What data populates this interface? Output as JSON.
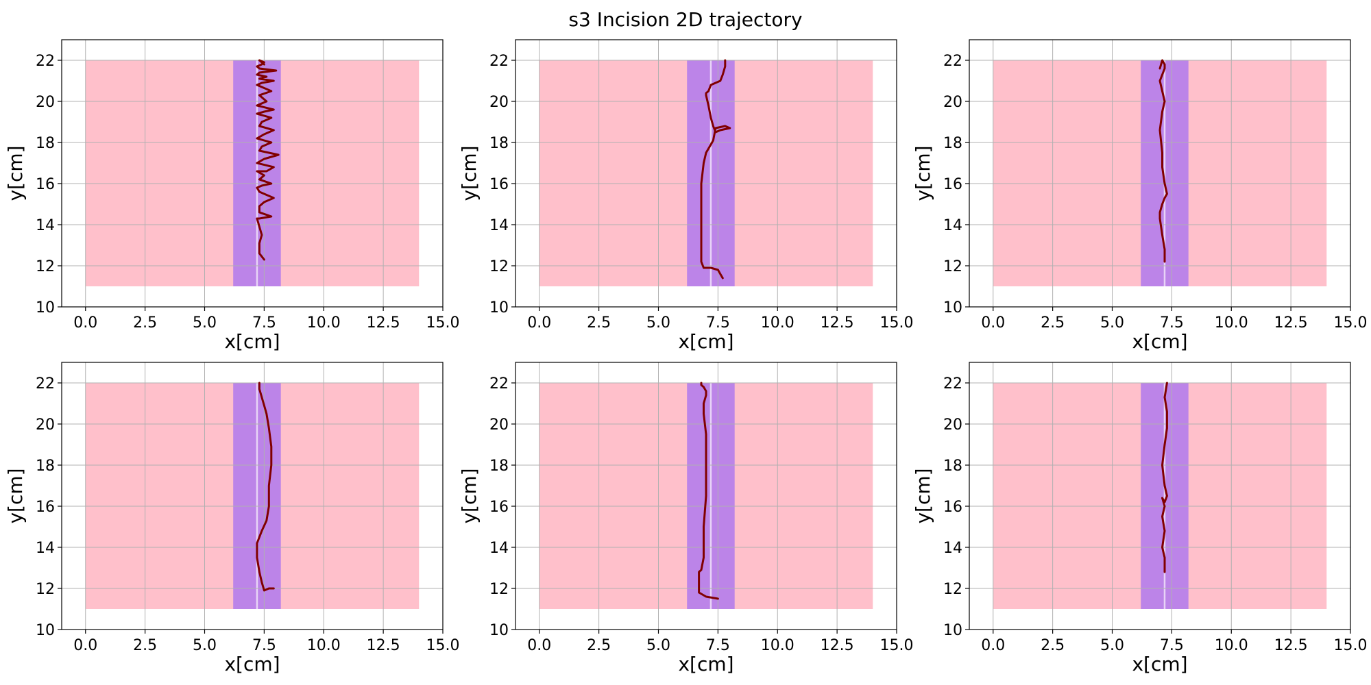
{
  "title": "s3 Incision 2D trajectory",
  "colors": {
    "background_region": "#ffc0cb",
    "band": "#bc84e8",
    "center_line": "#e8d4f7",
    "trajectory": "#800000",
    "grid": "#b0b0b0",
    "axis": "#000000"
  },
  "chart_data": [
    {
      "type": "line",
      "xlabel": "x[cm]",
      "ylabel": "y[cm]",
      "xlim": [
        -1,
        15
      ],
      "ylim": [
        10,
        23
      ],
      "xticks": [
        "0.0",
        "2.5",
        "5.0",
        "7.5",
        "10.0",
        "12.5",
        "15.0"
      ],
      "yticks": [
        "10",
        "12",
        "14",
        "16",
        "18",
        "20",
        "22"
      ],
      "grid": true,
      "regions": {
        "background": [
          0,
          14,
          11,
          22
        ],
        "band": [
          6.2,
          8.2
        ],
        "center_x": 7.2
      },
      "trajectory": {
        "x": [
          7.5,
          7.3,
          7.3,
          7.3,
          7.4,
          7.3,
          7.2,
          7.3,
          7.8,
          7.3,
          7.3,
          7.5,
          7.9,
          7.3,
          7.2,
          7.4,
          7.8,
          7.3,
          7.5,
          7.2,
          7.6,
          7.9,
          7.2,
          7.5,
          8.1,
          7.3,
          7.4,
          7.8,
          7.2,
          7.5,
          7.9,
          7.3,
          7.4,
          7.8,
          7.2,
          7.5,
          7.9,
          7.2,
          7.6,
          7.3,
          7.8,
          7.2,
          7.4,
          7.9,
          7.3,
          7.6,
          7.2,
          7.3,
          8.0,
          7.3,
          7.2,
          7.4,
          7.5,
          7.3,
          7.4,
          7.5
        ],
        "y": [
          12.3,
          12.6,
          12.8,
          13.1,
          13.5,
          13.9,
          14.3,
          14.3,
          14.4,
          14.6,
          14.9,
          15.1,
          15.3,
          15.6,
          15.8,
          15.9,
          16.0,
          16.2,
          16.4,
          16.6,
          16.6,
          16.8,
          17.0,
          17.2,
          17.4,
          17.6,
          17.8,
          18.0,
          18.2,
          18.4,
          18.6,
          18.8,
          19.0,
          19.2,
          19.4,
          19.5,
          19.6,
          19.8,
          20.0,
          20.3,
          20.5,
          20.8,
          20.9,
          21.0,
          21.1,
          21.2,
          21.3,
          21.4,
          21.5,
          21.6,
          21.7,
          21.8,
          21.9,
          22.0,
          21.9,
          21.8
        ]
      }
    },
    {
      "type": "line",
      "xlabel": "x[cm]",
      "ylabel": "y[cm]",
      "xlim": [
        -1,
        15
      ],
      "ylim": [
        10,
        23
      ],
      "xticks": [
        "0.0",
        "2.5",
        "5.0",
        "7.5",
        "10.0",
        "12.5",
        "15.0"
      ],
      "yticks": [
        "10",
        "12",
        "14",
        "16",
        "18",
        "20",
        "22"
      ],
      "grid": true,
      "regions": {
        "background": [
          0,
          14,
          11,
          22
        ],
        "band": [
          6.2,
          8.2
        ],
        "center_x": 7.2
      },
      "trajectory": {
        "x": [
          7.7,
          7.6,
          7.5,
          7.2,
          6.9,
          6.8,
          6.8,
          6.8,
          6.9,
          7.0,
          7.1,
          7.2,
          7.3,
          7.4,
          7.8,
          8.0,
          7.6,
          7.4,
          7.3,
          7.2,
          7.1,
          7.0,
          7.0,
          7.1,
          7.2,
          7.6,
          7.7,
          7.8,
          7.8
        ],
        "y": [
          11.4,
          11.6,
          11.8,
          11.9,
          11.9,
          12.2,
          14.0,
          16.0,
          17.0,
          17.5,
          17.7,
          17.9,
          18.1,
          18.7,
          18.8,
          18.7,
          18.6,
          18.5,
          18.8,
          19.2,
          19.8,
          20.3,
          20.4,
          20.5,
          20.8,
          21.0,
          21.3,
          21.7,
          22.0
        ]
      }
    },
    {
      "type": "line",
      "xlabel": "x[cm]",
      "ylabel": "y[cm]",
      "xlim": [
        -1,
        15
      ],
      "ylim": [
        10,
        23
      ],
      "xticks": [
        "0.0",
        "2.5",
        "5.0",
        "7.5",
        "10.0",
        "12.5",
        "15.0"
      ],
      "yticks": [
        "10",
        "12",
        "14",
        "16",
        "18",
        "20",
        "22"
      ],
      "grid": true,
      "regions": {
        "background": [
          0,
          14,
          11,
          22
        ],
        "band": [
          6.2,
          8.2
        ],
        "center_x": 7.2
      },
      "trajectory": {
        "x": [
          7.2,
          7.2,
          7.1,
          7.0,
          7.0,
          7.1,
          7.2,
          7.3,
          7.2,
          7.1,
          7.1,
          7.0,
          7.1,
          7.2,
          7.1,
          7.0,
          7.1,
          7.2,
          7.2,
          7.1,
          7.0
        ],
        "y": [
          12.2,
          12.8,
          13.5,
          14.3,
          14.6,
          15.0,
          15.3,
          15.5,
          16.0,
          16.8,
          17.5,
          18.6,
          19.5,
          20.0,
          20.5,
          21.0,
          21.3,
          21.6,
          21.8,
          22.0,
          21.6
        ]
      }
    },
    {
      "type": "line",
      "xlabel": "x[cm]",
      "ylabel": "y[cm]",
      "xlim": [
        -1,
        15
      ],
      "ylim": [
        10,
        23
      ],
      "xticks": [
        "0.0",
        "2.5",
        "5.0",
        "7.5",
        "10.0",
        "12.5",
        "15.0"
      ],
      "yticks": [
        "10",
        "12",
        "14",
        "16",
        "18",
        "20",
        "22"
      ],
      "grid": true,
      "regions": {
        "background": [
          0,
          14,
          11,
          22
        ],
        "band": [
          6.2,
          8.2
        ],
        "center_x": 7.2
      },
      "trajectory": {
        "x": [
          7.9,
          7.7,
          7.5,
          7.4,
          7.3,
          7.2,
          7.2,
          7.4,
          7.6,
          7.7,
          7.7,
          7.8,
          7.8,
          7.7,
          7.6,
          7.5,
          7.4,
          7.3,
          7.3
        ],
        "y": [
          12.0,
          12.0,
          11.9,
          12.3,
          12.8,
          13.5,
          14.2,
          14.8,
          15.3,
          16.0,
          17.0,
          18.0,
          18.9,
          19.8,
          20.5,
          20.9,
          21.3,
          21.7,
          22.0
        ]
      }
    },
    {
      "type": "line",
      "xlabel": "x[cm]",
      "ylabel": "y[cm]",
      "xlim": [
        -1,
        15
      ],
      "ylim": [
        10,
        23
      ],
      "xticks": [
        "0.0",
        "2.5",
        "5.0",
        "7.5",
        "10.0",
        "12.5",
        "15.0"
      ],
      "yticks": [
        "10",
        "12",
        "14",
        "16",
        "18",
        "20",
        "22"
      ],
      "grid": true,
      "regions": {
        "background": [
          0,
          14,
          11,
          22
        ],
        "band": [
          6.2,
          8.2
        ],
        "center_x": 7.2
      },
      "trajectory": {
        "x": [
          7.5,
          7.0,
          6.7,
          6.7,
          6.7,
          6.8,
          6.9,
          6.9,
          7.0,
          7.0,
          7.0,
          6.9,
          6.9,
          7.0,
          7.0,
          6.9,
          6.8,
          6.8
        ],
        "y": [
          11.5,
          11.6,
          11.8,
          12.3,
          12.8,
          12.9,
          13.5,
          15.0,
          16.5,
          18.0,
          19.5,
          20.5,
          21.0,
          21.4,
          21.6,
          21.8,
          21.9,
          22.0
        ]
      }
    },
    {
      "type": "line",
      "xlabel": "x[cm]",
      "ylabel": "y[cm]",
      "xlim": [
        -1,
        15
      ],
      "ylim": [
        10,
        23
      ],
      "xticks": [
        "0.0",
        "2.5",
        "5.0",
        "7.5",
        "10.0",
        "12.5",
        "15.0"
      ],
      "yticks": [
        "10",
        "12",
        "14",
        "16",
        "18",
        "20",
        "22"
      ],
      "grid": true,
      "regions": {
        "background": [
          0,
          14,
          11,
          22
        ],
        "band": [
          6.2,
          8.2
        ],
        "center_x": 7.2
      },
      "trajectory": {
        "x": [
          7.2,
          7.2,
          7.1,
          7.2,
          7.1,
          7.2,
          7.1,
          7.2,
          7.3,
          7.2,
          7.1,
          7.2,
          7.3,
          7.3,
          7.2,
          7.3
        ],
        "y": [
          12.8,
          13.5,
          14.0,
          14.8,
          15.5,
          16.0,
          16.4,
          16.2,
          16.5,
          17.0,
          18.0,
          19.0,
          19.8,
          20.6,
          21.3,
          22.0
        ]
      }
    }
  ]
}
